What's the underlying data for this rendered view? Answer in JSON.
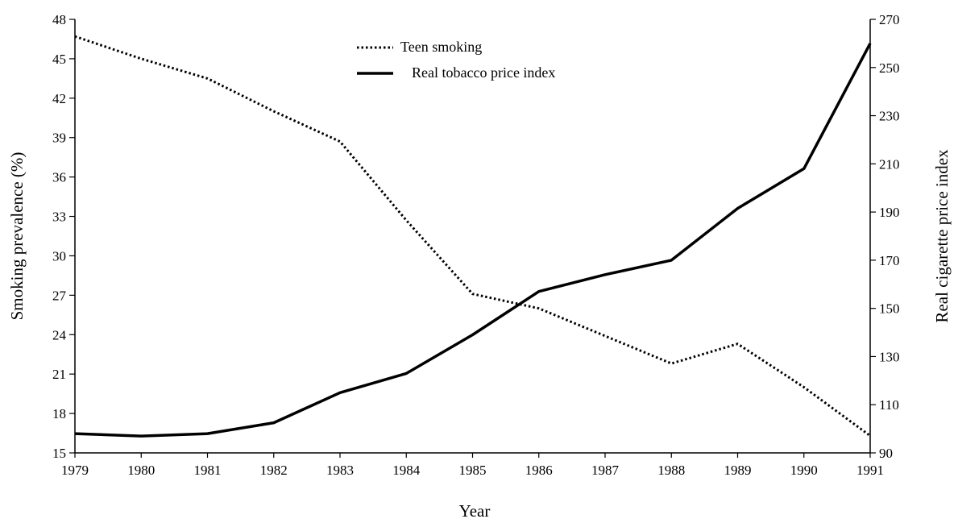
{
  "chart_data": {
    "type": "line",
    "title": "",
    "xlabel": "Year",
    "ylabel": "Smoking prevalence (%)",
    "y2label": "Real cigarette price index",
    "x": [
      1979,
      1980,
      1981,
      1982,
      1983,
      1984,
      1985,
      1986,
      1987,
      1988,
      1989,
      1990,
      1991
    ],
    "xticks": [
      "1979",
      "1980",
      "1981",
      "1982",
      "1983",
      "1984",
      "1985",
      "1986",
      "1987",
      "1988",
      "1989",
      "1990",
      "1991"
    ],
    "ylim": [
      15,
      48
    ],
    "yticks": [
      "15",
      "18",
      "21",
      "24",
      "27",
      "30",
      "33",
      "36",
      "39",
      "42",
      "45",
      "48"
    ],
    "y2lim": [
      90,
      270
    ],
    "y2ticks": [
      "90",
      "110",
      "130",
      "150",
      "170",
      "190",
      "210",
      "230",
      "250",
      "270"
    ],
    "grid": false,
    "legend_position": "top-center",
    "series": [
      {
        "name": "Teen smoking",
        "axis": "left",
        "style": "dotted",
        "color": "#000000",
        "values": [
          46.7,
          45.0,
          43.5,
          41.0,
          38.7,
          32.7,
          27.1,
          26.0,
          23.9,
          21.8,
          23.3,
          20.0,
          16.3
        ]
      },
      {
        "name": "Real tobacco price index",
        "axis": "right",
        "style": "solid",
        "color": "#000000",
        "values": [
          98.0,
          97.0,
          98.0,
          102.5,
          115.0,
          123.0,
          139.0,
          157.0,
          164.0,
          170.0,
          191.5,
          208.0,
          260.0
        ]
      }
    ]
  }
}
